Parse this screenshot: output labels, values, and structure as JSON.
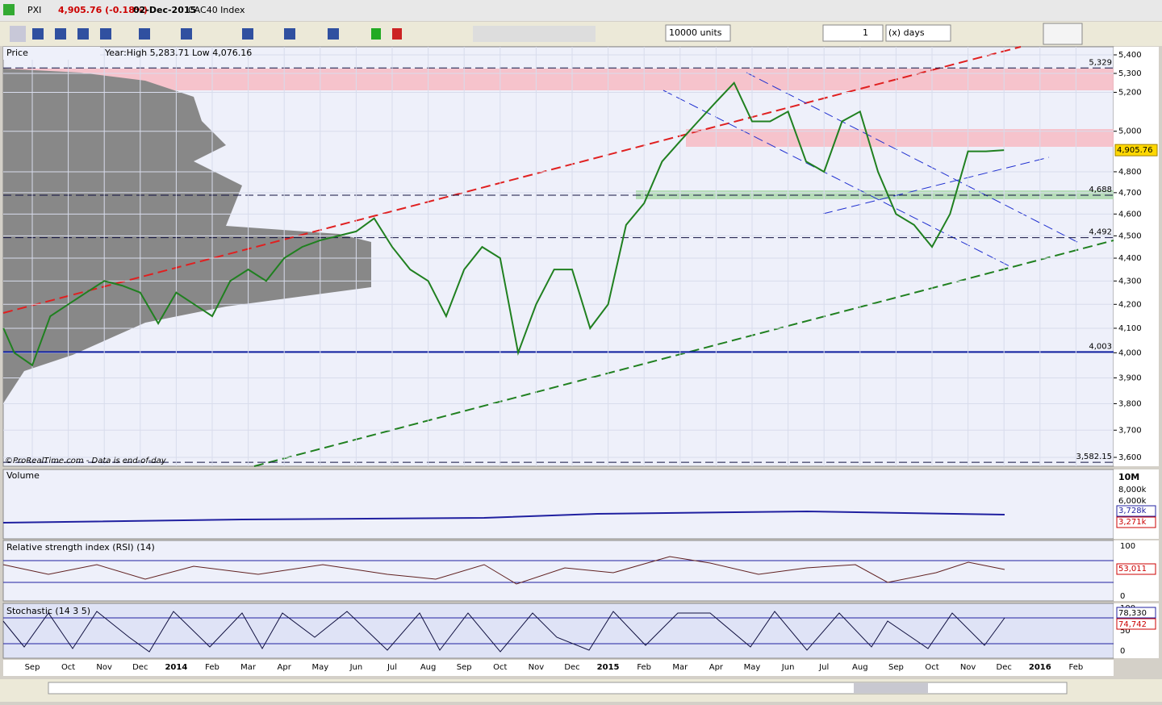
{
  "header": {
    "symbol": "PXI",
    "price": "4,905.76 (-0.18%)",
    "date": "02-Dec-2015",
    "name": "CAC40 Index"
  },
  "toolbar": {
    "units": "10000 units",
    "period": "1",
    "period_unit": "(x) days"
  },
  "price_panel": {
    "title": "Price",
    "info": "Year:High 5,283.71 Low 4,076.16",
    "credit": "©ProRealTime.com - Data is end-of-day",
    "log_scale": true,
    "grid": true,
    "ylim": [
      3600,
      5400
    ],
    "yticks": [
      {
        "value": 5400,
        "label": "5,400"
      },
      {
        "value": 5300,
        "label": "5,300"
      },
      {
        "value": 5200,
        "label": "5,200"
      },
      {
        "value": 5000,
        "label": "5,000"
      },
      {
        "value": 4800,
        "label": "4,800"
      },
      {
        "value": 4700,
        "label": "4,700"
      },
      {
        "value": 4600,
        "label": "4,600"
      },
      {
        "value": 4500,
        "label": "4,500"
      },
      {
        "value": 4400,
        "label": "4,400"
      },
      {
        "value": 4300,
        "label": "4,300"
      },
      {
        "value": 4200,
        "label": "4,200"
      },
      {
        "value": 4100,
        "label": "4,100"
      },
      {
        "value": 4000,
        "label": "4,000"
      },
      {
        "value": 3900,
        "label": "3,900"
      },
      {
        "value": 3800,
        "label": "3,800"
      },
      {
        "value": 3700,
        "label": "3,700"
      },
      {
        "value": 3600,
        "label": "3,600"
      }
    ],
    "levels": [
      {
        "value": 5329,
        "label": "5,329"
      },
      {
        "value": 4688,
        "label": "4,688"
      },
      {
        "value": 4492,
        "label": "4,492"
      },
      {
        "value": 4003,
        "label": "4,003"
      },
      {
        "value": 3582.15,
        "label": "3,582.15"
      }
    ],
    "last": {
      "value": 4905.76,
      "label": "4,905.76"
    },
    "series": {
      "color": "#208020",
      "x": [
        -0.8,
        -0.5,
        0,
        0.5,
        1,
        1.5,
        2,
        2.5,
        3,
        3.5,
        4,
        4.5,
        5,
        5.5,
        6,
        6.5,
        7,
        7.5,
        8,
        8.5,
        9,
        9.5,
        10,
        10.5,
        11,
        11.5,
        12,
        12.5,
        13,
        13.5,
        14,
        14.5,
        15,
        15.5,
        16,
        16.5,
        17,
        17.5,
        18,
        18.5,
        19,
        19.5,
        20,
        20.5,
        21,
        21.5,
        22,
        22.5,
        23,
        23.5,
        24,
        24.5,
        25,
        25.5,
        26,
        26.5,
        27
      ],
      "values": [
        4100,
        4000,
        3950,
        4150,
        4200,
        4250,
        4300,
        4280,
        4250,
        4120,
        4250,
        4200,
        4150,
        4300,
        4350,
        4300,
        4400,
        4450,
        4480,
        4500,
        4520,
        4580,
        4450,
        4350,
        4300,
        4150,
        4350,
        4450,
        4400,
        4000,
        4200,
        4350,
        4350,
        4100,
        4200,
        4550,
        4650,
        4850,
        4950,
        5050,
        5150,
        5250,
        5050,
        5050,
        5100,
        4850,
        4800,
        5050,
        5100,
        4800,
        4600,
        4550,
        4450,
        4600,
        4900,
        4900,
        4905.76
      ]
    }
  },
  "months": [
    "Sep",
    "Oct",
    "Nov",
    "Dec",
    "2014",
    "Feb",
    "Mar",
    "Apr",
    "May",
    "Jun",
    "Jul",
    "Aug",
    "Sep",
    "Oct",
    "Nov",
    "Dec",
    "2015",
    "Feb",
    "Mar",
    "Apr",
    "May",
    "Jun",
    "Jul",
    "Aug",
    "Sep",
    "Oct",
    "Nov",
    "Dec",
    "2016",
    "Feb"
  ],
  "volume": {
    "title": "Volume",
    "ticks": [
      "10M",
      "8,000k",
      "6,000k"
    ],
    "avg": "3,728k",
    "last": "3,271k"
  },
  "rsi": {
    "title": "Relative strength index (RSI) (14)",
    "ticks": [
      "100",
      "0"
    ],
    "last": "53,011"
  },
  "stochastic": {
    "title": "Stochastic (14 3 5)",
    "ticks": [
      "100",
      "50",
      "0"
    ],
    "k": "78,330",
    "d": "74,742"
  }
}
